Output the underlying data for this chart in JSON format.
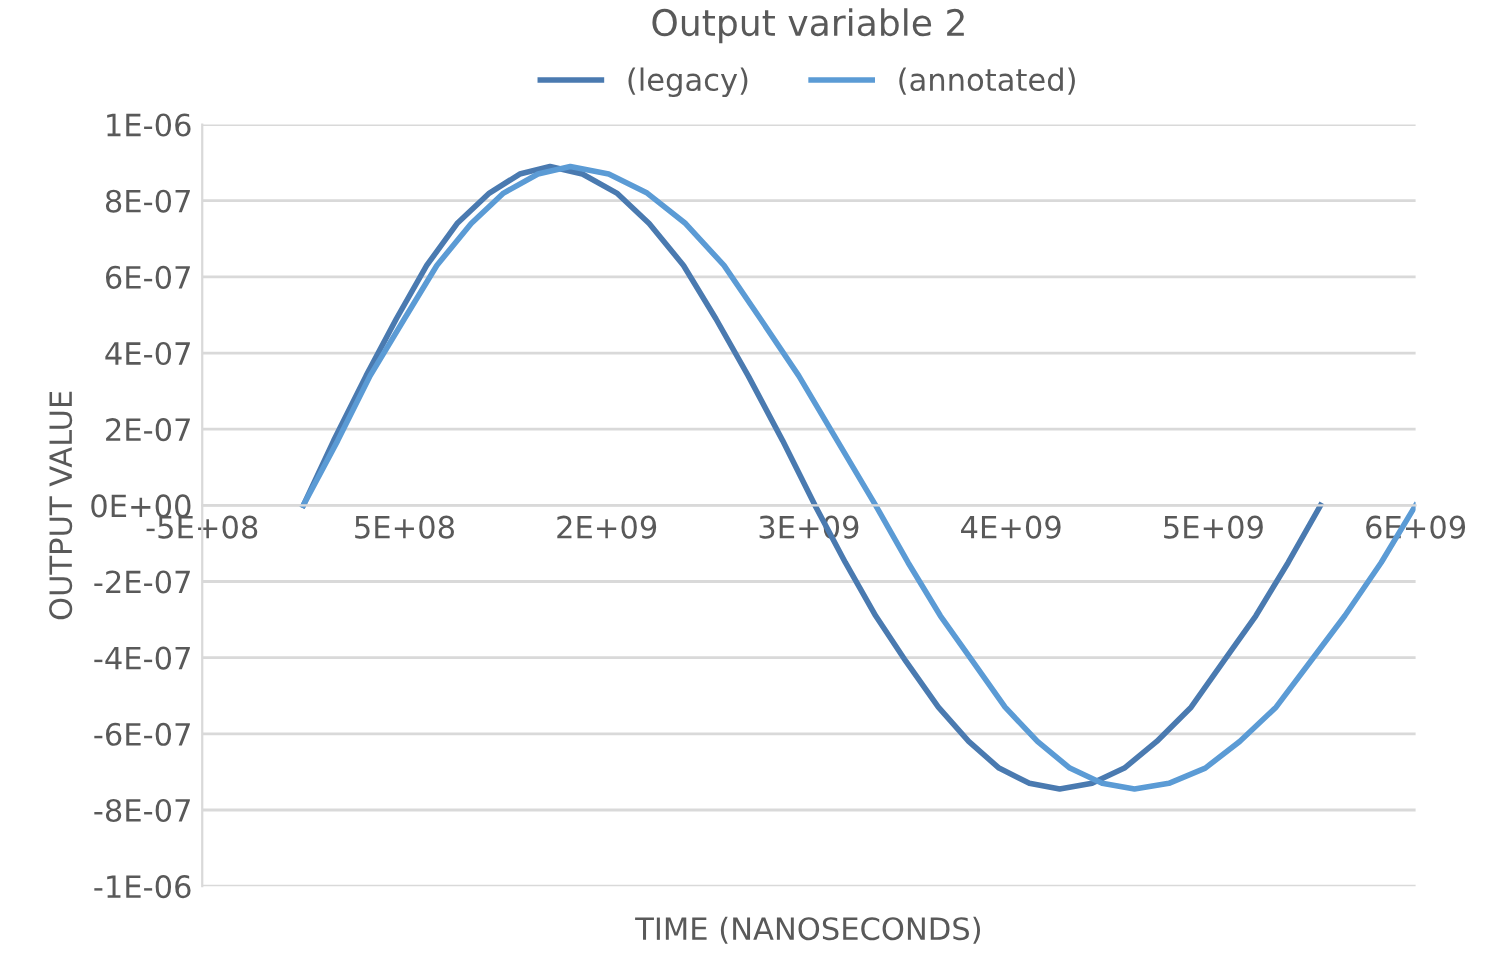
{
  "chart_data": {
    "type": "line",
    "title": "Output variable 2",
    "xlabel": "TIME (NANOSECONDS)",
    "ylabel": "OUTPUT VALUE",
    "series": [
      {
        "name": "(legacy)",
        "color": "#4a7ab0",
        "x": [
          0,
          150000000.0,
          310000000.0,
          460000000.0,
          610000000.0,
          760000000.0,
          920000000.0,
          1070000000.0,
          1220000000.0,
          1380000000.0,
          1550000000.0,
          1710000000.0,
          1880000000.0,
          2040000000.0,
          2200000000.0,
          2370000000.0,
          2530000000.0,
          2680000000.0,
          2830000000.0,
          2980000000.0,
          3140000000.0,
          3290000000.0,
          3440000000.0,
          3590000000.0,
          3740000000.0,
          3900000000.0,
          4060000000.0,
          4220000000.0,
          4390000000.0,
          4550000000.0,
          4710000000.0,
          4870000000.0,
          5030000000.0
        ],
        "values": [
          0,
          1.7e-07,
          3.4e-07,
          4.9e-07,
          6.3e-07,
          7.4e-07,
          8.2e-07,
          8.7e-07,
          8.9e-07,
          8.7e-07,
          8.2e-07,
          7.4e-07,
          6.3e-07,
          4.9e-07,
          3.4e-07,
          1.7e-07,
          0,
          -1.5e-07,
          -2.9e-07,
          -4.1e-07,
          -5.3e-07,
          -6.2e-07,
          -6.9e-07,
          -7.3e-07,
          -7.45e-07,
          -7.3e-07,
          -6.9e-07,
          -6.2e-07,
          -5.3e-07,
          -4.1e-07,
          -2.9e-07,
          -1.5e-07,
          0
        ]
      },
      {
        "name": "(annotated)",
        "color": "#5b9bd5",
        "x": [
          0,
          170000000.0,
          330000000.0,
          500000000.0,
          660000000.0,
          830000000.0,
          990000000.0,
          1160000000.0,
          1320000000.0,
          1510000000.0,
          1700000000.0,
          1890000000.0,
          2080000000.0,
          2260000000.0,
          2450000000.0,
          2640000000.0,
          2830000000.0,
          2990000000.0,
          3150000000.0,
          3310000000.0,
          3470000000.0,
          3630000000.0,
          3790000000.0,
          3950000000.0,
          4110000000.0,
          4280000000.0,
          4460000000.0,
          4630000000.0,
          4810000000.0,
          4980000000.0,
          5150000000.0,
          5330000000.0,
          5500000000.0
        ],
        "values": [
          0,
          1.7e-07,
          3.4e-07,
          4.9e-07,
          6.3e-07,
          7.4e-07,
          8.2e-07,
          8.7e-07,
          8.9e-07,
          8.7e-07,
          8.2e-07,
          7.4e-07,
          6.3e-07,
          4.9e-07,
          3.4e-07,
          1.7e-07,
          0,
          -1.5e-07,
          -2.9e-07,
          -4.1e-07,
          -5.3e-07,
          -6.2e-07,
          -6.9e-07,
          -7.3e-07,
          -7.45e-07,
          -7.3e-07,
          -6.9e-07,
          -6.2e-07,
          -5.3e-07,
          -4.1e-07,
          -2.9e-07,
          -1.5e-07,
          0
        ]
      }
    ],
    "xlim": [
      -500000000.0,
      5500000000.0
    ],
    "xticks": [
      {
        "value": -500000000.0,
        "label": "-5E+08"
      },
      {
        "value": 500000000.0,
        "label": "5E+08"
      },
      {
        "value": 1500000000.0,
        "label": "2E+09"
      },
      {
        "value": 2500000000.0,
        "label": "3E+09"
      },
      {
        "value": 3500000000.0,
        "label": "4E+09"
      },
      {
        "value": 4500000000.0,
        "label": "5E+09"
      },
      {
        "value": 5500000000.0,
        "label": "6E+09"
      }
    ],
    "ylim": [
      -1e-06,
      1e-06
    ],
    "yticks": [
      {
        "value": -1e-06,
        "label": "-1E-06"
      },
      {
        "value": -8e-07,
        "label": "-8E-07"
      },
      {
        "value": -6e-07,
        "label": "-6E-07"
      },
      {
        "value": -4e-07,
        "label": "-4E-07"
      },
      {
        "value": -2e-07,
        "label": "-2E-07"
      },
      {
        "value": 0,
        "label": "0E+00"
      },
      {
        "value": 2e-07,
        "label": "2E-07"
      },
      {
        "value": 4e-07,
        "label": "4E-07"
      },
      {
        "value": 6e-07,
        "label": "6E-07"
      },
      {
        "value": 8e-07,
        "label": "8E-07"
      },
      {
        "value": 1e-06,
        "label": "1E-06"
      }
    ],
    "grid": "y",
    "legend": "top",
    "marker": "none",
    "line_style": "solid"
  }
}
